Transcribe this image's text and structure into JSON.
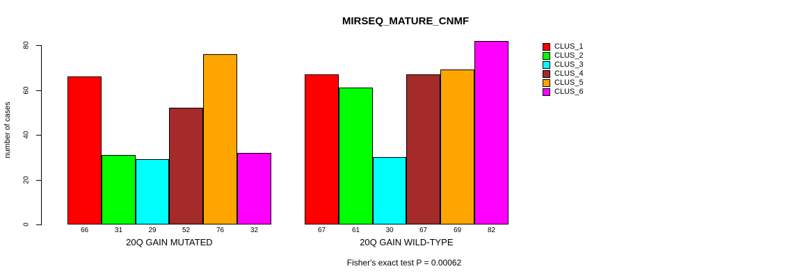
{
  "chart_data": {
    "type": "bar",
    "title": "MIRSEQ_MATURE_CNMF",
    "ylabel": "number of cases",
    "xlabel": "",
    "annotation": "Fisher's exact test P = 0.00062",
    "yticks": [
      0,
      20,
      40,
      60,
      80
    ],
    "ylim": [
      0,
      82
    ],
    "grid": false,
    "bar_value_labels": true,
    "legend_position": "right",
    "series_colors": [
      "#ff0000",
      "#00ff00",
      "#00ffff",
      "#a52a2a",
      "#ffa500",
      "#ff00ff"
    ],
    "legend": {
      "entries": [
        {
          "label": "CLUS_1",
          "color": "#ff0000"
        },
        {
          "label": "CLUS_2",
          "color": "#00ff00"
        },
        {
          "label": "CLUS_3",
          "color": "#00ffff"
        },
        {
          "label": "CLUS_4",
          "color": "#a52a2a"
        },
        {
          "label": "CLUS_5",
          "color": "#ffa500"
        },
        {
          "label": "CLUS_6",
          "color": "#ff00ff"
        }
      ]
    },
    "groups": [
      {
        "label": "20Q GAIN MUTATED",
        "values": [
          66,
          31,
          29,
          52,
          76,
          32
        ]
      },
      {
        "label": "20Q GAIN WILD-TYPE",
        "values": [
          67,
          61,
          30,
          67,
          69,
          82
        ]
      }
    ]
  }
}
